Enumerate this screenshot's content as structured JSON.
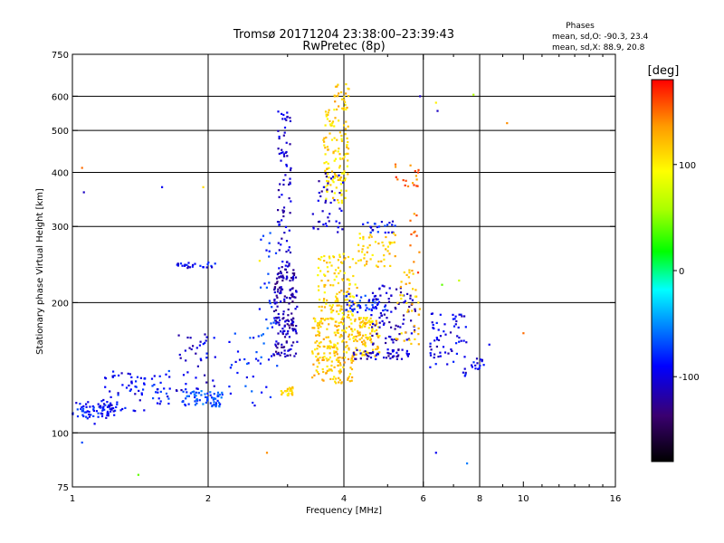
{
  "chart_data": {
    "type": "scatter",
    "title": "Tromsø 20171204 23:38:00–23:39:43",
    "subtitle": "RwPretec (8p)",
    "stats": {
      "heading": "Phases",
      "line_o": "mean, sd,O: -90.3, 23.4",
      "line_x": "mean, sd,X: 88.9, 20.8"
    },
    "xlabel": "Frequency [MHz]",
    "ylabel": "Stationary phase Virtual Height [km]",
    "x_scale": "log",
    "y_scale": "log",
    "xlim": [
      1,
      16
    ],
    "ylim": [
      75,
      750
    ],
    "x_ticks": [
      1,
      2,
      4,
      6,
      8,
      10,
      16
    ],
    "x_minor_ticks": [
      3,
      5,
      7,
      9,
      11,
      12,
      13,
      14,
      15
    ],
    "y_ticks": [
      75,
      100,
      200,
      300,
      400,
      500,
      600,
      750
    ],
    "x_gridlines": [
      2,
      4,
      6,
      8
    ],
    "y_gridlines": [
      100,
      200,
      300,
      400,
      500,
      600
    ],
    "grid": true,
    "colorbar": {
      "label": "[deg]",
      "range": [
        -180,
        180
      ],
      "ticks": [
        -100,
        0,
        100
      ]
    },
    "clusters": [
      {
        "f": [
          1.0,
          1.25
        ],
        "h": [
          108,
          118
        ],
        "phase": -88,
        "n": 70
      },
      {
        "f": [
          1.15,
          1.45
        ],
        "h": [
          112,
          140
        ],
        "phase": -92,
        "n": 60
      },
      {
        "f": [
          1.5,
          1.65
        ],
        "h": [
          115,
          140
        ],
        "phase": -85,
        "n": 25
      },
      {
        "f": [
          1.75,
          2.15
        ],
        "h": [
          115,
          125
        ],
        "phase": -70,
        "n": 70
      },
      {
        "f": [
          1.7,
          2.1
        ],
        "h": [
          125,
          175
        ],
        "phase": -100,
        "n": 40
      },
      {
        "f": [
          1.7,
          2.1
        ],
        "h": [
          240,
          248
        ],
        "phase": -95,
        "n": 25
      },
      {
        "f": [
          2.2,
          2.6
        ],
        "h": [
          115,
          170
        ],
        "phase": -80,
        "n": 25
      },
      {
        "f": [
          2.6,
          2.85
        ],
        "h": [
          120,
          300
        ],
        "phase": -75,
        "n": 40
      },
      {
        "f": [
          2.8,
          3.15
        ],
        "h": [
          150,
          240
        ],
        "phase": -115,
        "n": 170
      },
      {
        "f": [
          2.85,
          3.05
        ],
        "h": [
          240,
          560
        ],
        "phase": -105,
        "n": 80
      },
      {
        "f": [
          2.9,
          3.1
        ],
        "h": [
          122,
          128
        ],
        "phase": 110,
        "n": 25
      },
      {
        "f": [
          3.4,
          4.8
        ],
        "h": [
          150,
          185
        ],
        "phase": 115,
        "n": 230
      },
      {
        "f": [
          3.4,
          4.2
        ],
        "h": [
          130,
          150
        ],
        "phase": 120,
        "n": 80
      },
      {
        "f": [
          3.5,
          4.3
        ],
        "h": [
          185,
          260
        ],
        "phase": 110,
        "n": 120
      },
      {
        "f": [
          3.6,
          4.1
        ],
        "h": [
          340,
          560
        ],
        "phase": 108,
        "n": 120
      },
      {
        "f": [
          3.8,
          4.1
        ],
        "h": [
          560,
          640
        ],
        "phase": 120,
        "n": 25
      },
      {
        "f": [
          3.4,
          4.0
        ],
        "h": [
          290,
          400
        ],
        "phase": -110,
        "n": 40
      },
      {
        "f": [
          4.0,
          5.0
        ],
        "h": [
          190,
          210
        ],
        "phase": -80,
        "n": 50
      },
      {
        "f": [
          4.2,
          5.6
        ],
        "h": [
          148,
          156
        ],
        "phase": -110,
        "n": 50
      },
      {
        "f": [
          4.4,
          5.2
        ],
        "h": [
          290,
          310
        ],
        "phase": -90,
        "n": 25
      },
      {
        "f": [
          4.3,
          5.2
        ],
        "h": [
          240,
          290
        ],
        "phase": 115,
        "n": 50
      },
      {
        "f": [
          4.6,
          5.8
        ],
        "h": [
          160,
          220
        ],
        "phase": -110,
        "n": 80
      },
      {
        "f": [
          5.2,
          5.9
        ],
        "h": [
          160,
          245
        ],
        "phase": 118,
        "n": 40
      },
      {
        "f": [
          5.2,
          5.9
        ],
        "h": [
          370,
          420
        ],
        "phase": 150,
        "n": 18
      },
      {
        "f": [
          5.6,
          5.9
        ],
        "h": [
          230,
          330
        ],
        "phase": 150,
        "n": 12
      },
      {
        "f": [
          6.2,
          7.0
        ],
        "h": [
          140,
          190
        ],
        "phase": -100,
        "n": 40
      },
      {
        "f": [
          7.0,
          7.5
        ],
        "h": [
          135,
          190
        ],
        "phase": -100,
        "n": 25
      },
      {
        "f": [
          7.6,
          8.2
        ],
        "h": [
          140,
          150
        ],
        "phase": -95,
        "n": 14
      }
    ],
    "scatter_points": [
      [
        1.05,
        410,
        150
      ],
      [
        1.06,
        360,
        -110
      ],
      [
        1.4,
        80,
        40
      ],
      [
        2.7,
        90,
        140
      ],
      [
        6.4,
        90,
        -95
      ],
      [
        7.5,
        85,
        -55
      ],
      [
        9.2,
        520,
        140
      ],
      [
        10.0,
        170,
        150
      ],
      [
        7.75,
        605,
        60
      ],
      [
        6.4,
        580,
        100
      ],
      [
        6.45,
        555,
        -110
      ],
      [
        5.9,
        600,
        -110
      ],
      [
        2.6,
        250,
        100
      ],
      [
        1.58,
        370,
        -95
      ],
      [
        1.95,
        370,
        110
      ],
      [
        1.05,
        95,
        -70
      ],
      [
        1.12,
        105,
        -95
      ],
      [
        8.4,
        160,
        -95
      ],
      [
        6.6,
        220,
        40
      ],
      [
        7.2,
        225,
        70
      ]
    ]
  }
}
